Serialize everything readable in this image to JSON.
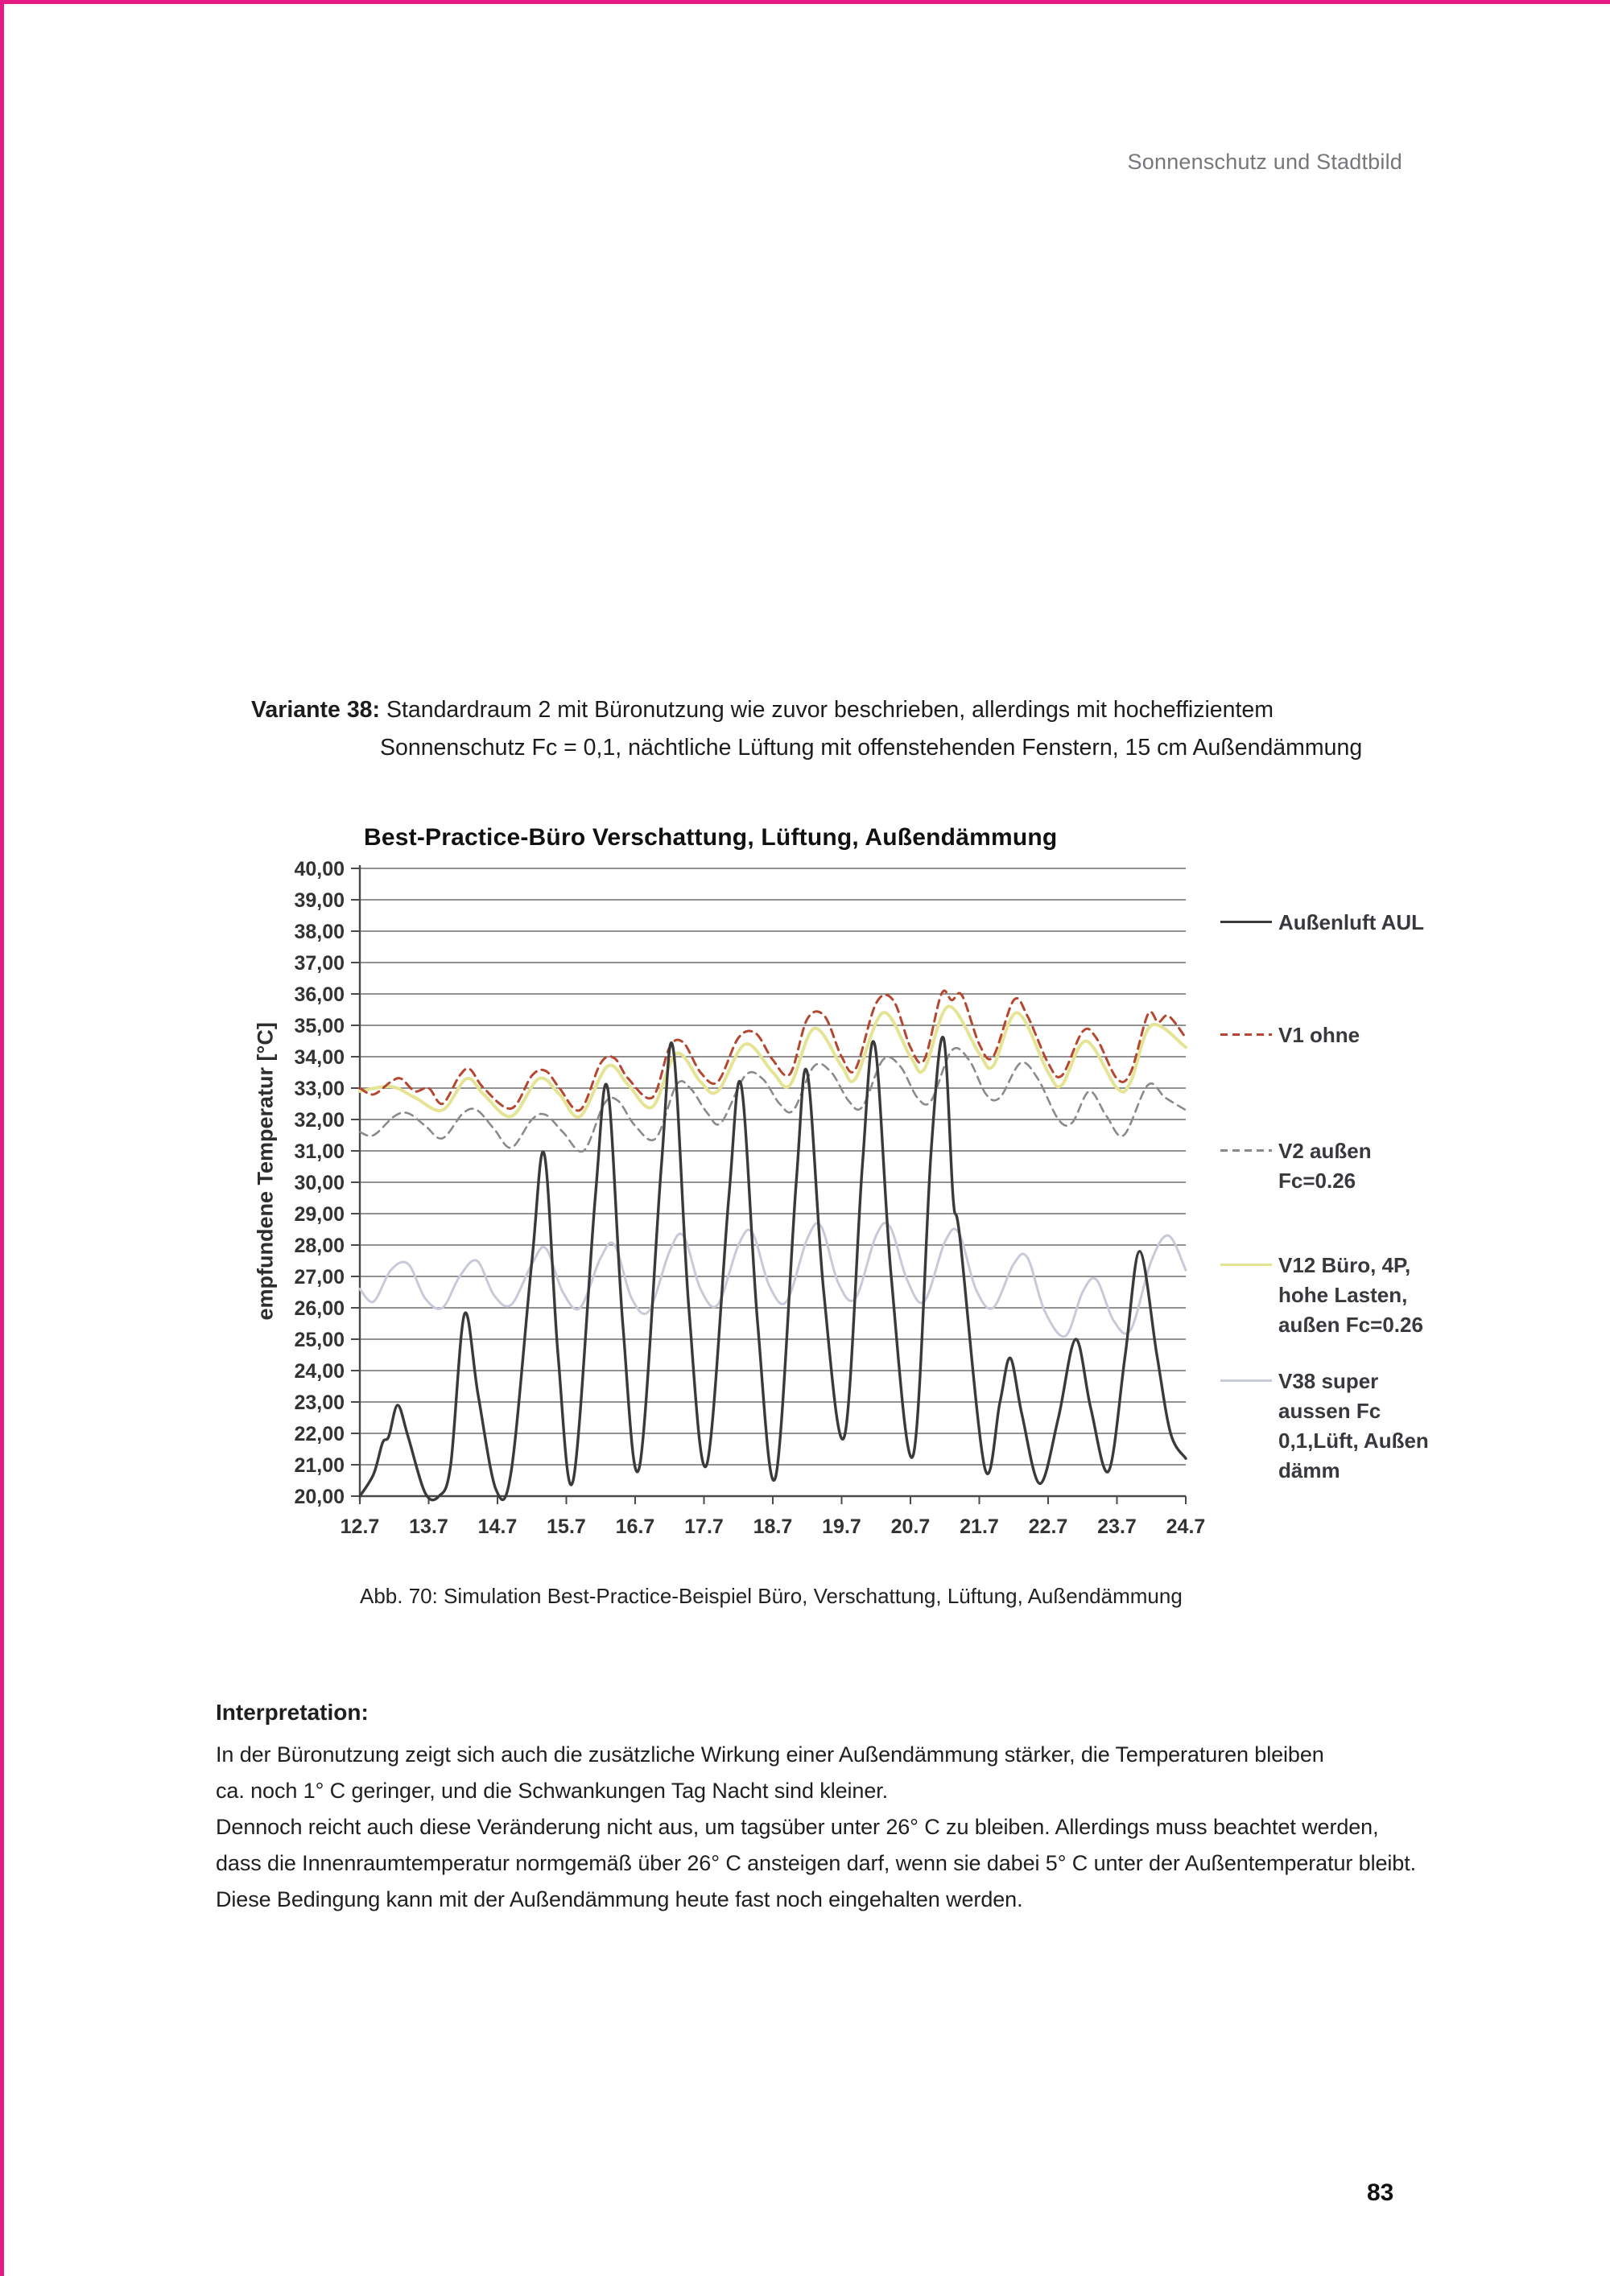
{
  "page": {
    "header": "Sonnenschutz und Stadtbild",
    "page_number": "83",
    "border_color": "#e61a83"
  },
  "variante": {
    "label": "Variante 38:",
    "line1": "Standardraum 2 mit Büronutzung wie zuvor beschrieben, allerdings mit hocheffizientem",
    "line2": "Sonnenschutz Fc = 0,1, nächtliche Lüftung mit offenstehenden Fenstern, 15 cm Außendämmung"
  },
  "figure": {
    "caption": "Abb. 70: Simulation Best-Practice-Beispiel Büro, Verschattung, Lüftung, Außendämmung"
  },
  "interpretation": {
    "heading": "Interpretation:",
    "lines": [
      "In der Büronutzung zeigt sich auch die zusätzliche Wirkung einer Außendämmung stärker, die Temperaturen bleiben",
      "ca. noch 1° C geringer, und die Schwankungen Tag Nacht sind kleiner.",
      "Dennoch reicht auch diese Veränderung nicht aus, um tagsüber unter 26° C zu bleiben. Allerdings muss beachtet werden,",
      "dass die Innenraumtemperatur normgemäß über 26° C ansteigen darf, wenn sie dabei 5° C unter der Außentemperatur bleibt.",
      "Diese Bedingung kann mit der Außendämmung heute fast noch eingehalten werden."
    ]
  },
  "chart_data": {
    "type": "line",
    "title": "Best-Practice-Büro Verschattung, Lüftung, Außendämmung",
    "xlabel": "",
    "ylabel": "empfundene Temperatur [°C]",
    "ylim": [
      20,
      40
    ],
    "y_tick_step": 1,
    "grid": true,
    "legend_position": "right",
    "y_tick_labels": [
      "40,00",
      "39,00",
      "38,00",
      "37,00",
      "36,00",
      "35,00",
      "34,00",
      "33,00",
      "32,00",
      "31,00",
      "30,00",
      "29,00",
      "28,00",
      "27,00",
      "26,00",
      "25,00",
      "24,00",
      "23,00",
      "22,00",
      "21,00",
      "20,00"
    ],
    "x_tick_labels": [
      "12.7",
      "13.7",
      "14.7",
      "15.7",
      "16.7",
      "17.7",
      "18.7",
      "19.7",
      "20.7",
      "21.7",
      "22.7",
      "23.7",
      "24.7"
    ],
    "axis_color": "#4a4a4a",
    "grid_color": "#6f6f6f",
    "tick_text_color": "#333333",
    "series": [
      {
        "name": "V38 super aussen Fc 0,1,Lüft, Außen dämm",
        "legend_lines": [
          "V38 super",
          "aussen Fc",
          "0,1,Lüft, Außen",
          "dämm"
        ],
        "color": "#c7cad9",
        "dash": "solid",
        "width": 3,
        "points": [
          [
            0,
            26.6
          ],
          [
            0.2,
            26.2
          ],
          [
            0.45,
            27.2
          ],
          [
            0.7,
            27.4
          ],
          [
            0.95,
            26.3
          ],
          [
            1.2,
            26.0
          ],
          [
            1.45,
            27.0
          ],
          [
            1.7,
            27.5
          ],
          [
            1.95,
            26.4
          ],
          [
            2.2,
            26.1
          ],
          [
            2.5,
            27.4
          ],
          [
            2.7,
            27.9
          ],
          [
            2.95,
            26.5
          ],
          [
            3.2,
            26.0
          ],
          [
            3.5,
            27.6
          ],
          [
            3.7,
            28.0
          ],
          [
            3.95,
            26.3
          ],
          [
            4.2,
            25.9
          ],
          [
            4.5,
            27.8
          ],
          [
            4.7,
            28.3
          ],
          [
            4.95,
            26.6
          ],
          [
            5.2,
            26.1
          ],
          [
            5.5,
            28.0
          ],
          [
            5.7,
            28.4
          ],
          [
            5.95,
            26.7
          ],
          [
            6.2,
            26.2
          ],
          [
            6.5,
            28.2
          ],
          [
            6.7,
            28.6
          ],
          [
            6.95,
            26.8
          ],
          [
            7.2,
            26.3
          ],
          [
            7.5,
            28.3
          ],
          [
            7.7,
            28.6
          ],
          [
            7.95,
            26.9
          ],
          [
            8.2,
            26.2
          ],
          [
            8.5,
            28.1
          ],
          [
            8.7,
            28.4
          ],
          [
            8.95,
            26.6
          ],
          [
            9.2,
            26.0
          ],
          [
            9.5,
            27.4
          ],
          [
            9.7,
            27.6
          ],
          [
            9.95,
            25.9
          ],
          [
            10.25,
            25.1
          ],
          [
            10.5,
            26.5
          ],
          [
            10.7,
            26.9
          ],
          [
            10.95,
            25.6
          ],
          [
            11.2,
            25.3
          ],
          [
            11.5,
            27.5
          ],
          [
            11.75,
            28.3
          ],
          [
            12,
            27.2
          ]
        ]
      },
      {
        "name": "V12 Büro, 4P, hohe Lasten, außen Fc=0.26",
        "legend_lines": [
          "V12 Büro, 4P,",
          "hohe Lasten,",
          "außen Fc=0.26"
        ],
        "color": "#e5e494",
        "dash": "solid",
        "width": 4,
        "points": [
          [
            0,
            32.9
          ],
          [
            0.45,
            33.05
          ],
          [
            0.8,
            32.7
          ],
          [
            1.2,
            32.3
          ],
          [
            1.55,
            33.3
          ],
          [
            1.8,
            32.8
          ],
          [
            2.2,
            32.1
          ],
          [
            2.6,
            33.3
          ],
          [
            2.9,
            32.8
          ],
          [
            3.2,
            32.1
          ],
          [
            3.6,
            33.7
          ],
          [
            3.9,
            33.1
          ],
          [
            4.25,
            32.4
          ],
          [
            4.6,
            34.1
          ],
          [
            4.95,
            33.2
          ],
          [
            5.2,
            32.9
          ],
          [
            5.6,
            34.4
          ],
          [
            6.0,
            33.5
          ],
          [
            6.25,
            33.1
          ],
          [
            6.6,
            34.9
          ],
          [
            7.0,
            33.7
          ],
          [
            7.2,
            33.3
          ],
          [
            7.6,
            35.4
          ],
          [
            8.0,
            34.0
          ],
          [
            8.2,
            33.6
          ],
          [
            8.55,
            35.6
          ],
          [
            9.0,
            34.1
          ],
          [
            9.2,
            33.7
          ],
          [
            9.55,
            35.4
          ],
          [
            10.0,
            33.5
          ],
          [
            10.2,
            33.1
          ],
          [
            10.55,
            34.5
          ],
          [
            11.0,
            33.0
          ],
          [
            11.2,
            33.2
          ],
          [
            11.5,
            35.0
          ],
          [
            12,
            34.3
          ]
        ]
      },
      {
        "name": "V2 außen Fc=0.26",
        "legend_lines": [
          "V2 außen",
          "Fc=0.26"
        ],
        "color": "#8a8a8a",
        "dash": "dashed",
        "width": 2.6,
        "points": [
          [
            0,
            31.6
          ],
          [
            0.2,
            31.5
          ],
          [
            0.5,
            32.1
          ],
          [
            0.7,
            32.2
          ],
          [
            0.95,
            31.8
          ],
          [
            1.2,
            31.4
          ],
          [
            1.5,
            32.2
          ],
          [
            1.7,
            32.3
          ],
          [
            1.95,
            31.7
          ],
          [
            2.2,
            31.1
          ],
          [
            2.5,
            32.0
          ],
          [
            2.7,
            32.15
          ],
          [
            2.95,
            31.6
          ],
          [
            3.25,
            31.0
          ],
          [
            3.55,
            32.5
          ],
          [
            3.75,
            32.6
          ],
          [
            4.0,
            31.8
          ],
          [
            4.3,
            31.4
          ],
          [
            4.6,
            33.1
          ],
          [
            4.8,
            33.0
          ],
          [
            5.05,
            32.2
          ],
          [
            5.25,
            31.9
          ],
          [
            5.6,
            33.4
          ],
          [
            5.85,
            33.3
          ],
          [
            6.1,
            32.5
          ],
          [
            6.3,
            32.3
          ],
          [
            6.6,
            33.7
          ],
          [
            6.85,
            33.5
          ],
          [
            7.1,
            32.6
          ],
          [
            7.3,
            32.4
          ],
          [
            7.6,
            33.9
          ],
          [
            7.85,
            33.7
          ],
          [
            8.1,
            32.7
          ],
          [
            8.3,
            32.6
          ],
          [
            8.6,
            34.2
          ],
          [
            8.85,
            33.9
          ],
          [
            9.1,
            32.8
          ],
          [
            9.3,
            32.7
          ],
          [
            9.6,
            33.8
          ],
          [
            9.85,
            33.3
          ],
          [
            10.15,
            32.0
          ],
          [
            10.35,
            31.9
          ],
          [
            10.6,
            32.9
          ],
          [
            10.85,
            32.1
          ],
          [
            11.1,
            31.5
          ],
          [
            11.45,
            33.1
          ],
          [
            11.7,
            32.7
          ],
          [
            12,
            32.3
          ]
        ]
      },
      {
        "name": "V1 ohne",
        "legend_lines": [
          "V1 ohne"
        ],
        "color": "#b5462f",
        "dash": "dashed",
        "width": 3,
        "points": [
          [
            0,
            33.0
          ],
          [
            0.2,
            32.8
          ],
          [
            0.45,
            33.2
          ],
          [
            0.6,
            33.3
          ],
          [
            0.8,
            32.9
          ],
          [
            1.0,
            33.0
          ],
          [
            1.2,
            32.5
          ],
          [
            1.45,
            33.4
          ],
          [
            1.6,
            33.6
          ],
          [
            1.8,
            33.0
          ],
          [
            2.2,
            32.35
          ],
          [
            2.5,
            33.4
          ],
          [
            2.7,
            33.55
          ],
          [
            2.9,
            33.0
          ],
          [
            3.2,
            32.3
          ],
          [
            3.5,
            33.8
          ],
          [
            3.7,
            33.95
          ],
          [
            3.9,
            33.3
          ],
          [
            4.25,
            32.7
          ],
          [
            4.5,
            34.3
          ],
          [
            4.7,
            34.45
          ],
          [
            4.95,
            33.5
          ],
          [
            5.2,
            33.2
          ],
          [
            5.5,
            34.6
          ],
          [
            5.75,
            34.75
          ],
          [
            6.0,
            33.9
          ],
          [
            6.25,
            33.45
          ],
          [
            6.5,
            35.2
          ],
          [
            6.75,
            35.3
          ],
          [
            7.0,
            34.0
          ],
          [
            7.2,
            33.6
          ],
          [
            7.5,
            35.7
          ],
          [
            7.75,
            35.8
          ],
          [
            8.0,
            34.3
          ],
          [
            8.2,
            33.9
          ],
          [
            8.45,
            36.0
          ],
          [
            8.6,
            35.8
          ],
          [
            8.75,
            35.95
          ],
          [
            9.0,
            34.4
          ],
          [
            9.2,
            34.0
          ],
          [
            9.5,
            35.8
          ],
          [
            9.7,
            35.3
          ],
          [
            10.0,
            33.8
          ],
          [
            10.2,
            33.4
          ],
          [
            10.5,
            34.8
          ],
          [
            10.7,
            34.6
          ],
          [
            11.0,
            33.3
          ],
          [
            11.2,
            33.5
          ],
          [
            11.45,
            35.35
          ],
          [
            11.6,
            35.1
          ],
          [
            11.75,
            35.3
          ],
          [
            12,
            34.6
          ]
        ]
      },
      {
        "name": "Außenluft AUL",
        "legend_lines": [
          "Außenluft AUL"
        ],
        "color": "#3a3a3a",
        "dash": "solid",
        "width": 3.4,
        "points": [
          [
            0,
            20.0
          ],
          [
            0.2,
            20.7
          ],
          [
            0.33,
            21.7
          ],
          [
            0.42,
            21.9
          ],
          [
            0.55,
            22.9
          ],
          [
            0.7,
            21.9
          ],
          [
            0.95,
            20.1
          ],
          [
            1.15,
            20.0
          ],
          [
            1.32,
            21.0
          ],
          [
            1.52,
            25.8
          ],
          [
            1.72,
            23.2
          ],
          [
            1.98,
            20.2
          ],
          [
            2.2,
            20.8
          ],
          [
            2.5,
            27.5
          ],
          [
            2.68,
            30.9
          ],
          [
            2.88,
            24.5
          ],
          [
            3.1,
            20.5
          ],
          [
            3.42,
            29.5
          ],
          [
            3.6,
            33.0
          ],
          [
            3.82,
            25.5
          ],
          [
            4.06,
            20.9
          ],
          [
            4.38,
            30.5
          ],
          [
            4.55,
            34.3
          ],
          [
            4.78,
            26.0
          ],
          [
            5.04,
            21.0
          ],
          [
            5.36,
            29.5
          ],
          [
            5.54,
            33.1
          ],
          [
            5.78,
            25.5
          ],
          [
            6.04,
            20.6
          ],
          [
            6.34,
            30.0
          ],
          [
            6.5,
            33.5
          ],
          [
            6.74,
            26.5
          ],
          [
            7.04,
            21.9
          ],
          [
            7.3,
            30.5
          ],
          [
            7.48,
            34.4
          ],
          [
            7.72,
            27.0
          ],
          [
            8.04,
            21.3
          ],
          [
            8.3,
            31.0
          ],
          [
            8.48,
            34.6
          ],
          [
            8.62,
            29.5
          ],
          [
            8.72,
            28.2
          ],
          [
            9.08,
            20.9
          ],
          [
            9.3,
            23.0
          ],
          [
            9.45,
            24.4
          ],
          [
            9.62,
            22.6
          ],
          [
            9.88,
            20.4
          ],
          [
            10.15,
            22.5
          ],
          [
            10.4,
            25.0
          ],
          [
            10.62,
            22.8
          ],
          [
            10.88,
            20.8
          ],
          [
            11.12,
            24.5
          ],
          [
            11.33,
            27.8
          ],
          [
            11.58,
            24.5
          ],
          [
            11.78,
            22.0
          ],
          [
            12,
            21.2
          ]
        ]
      }
    ]
  }
}
